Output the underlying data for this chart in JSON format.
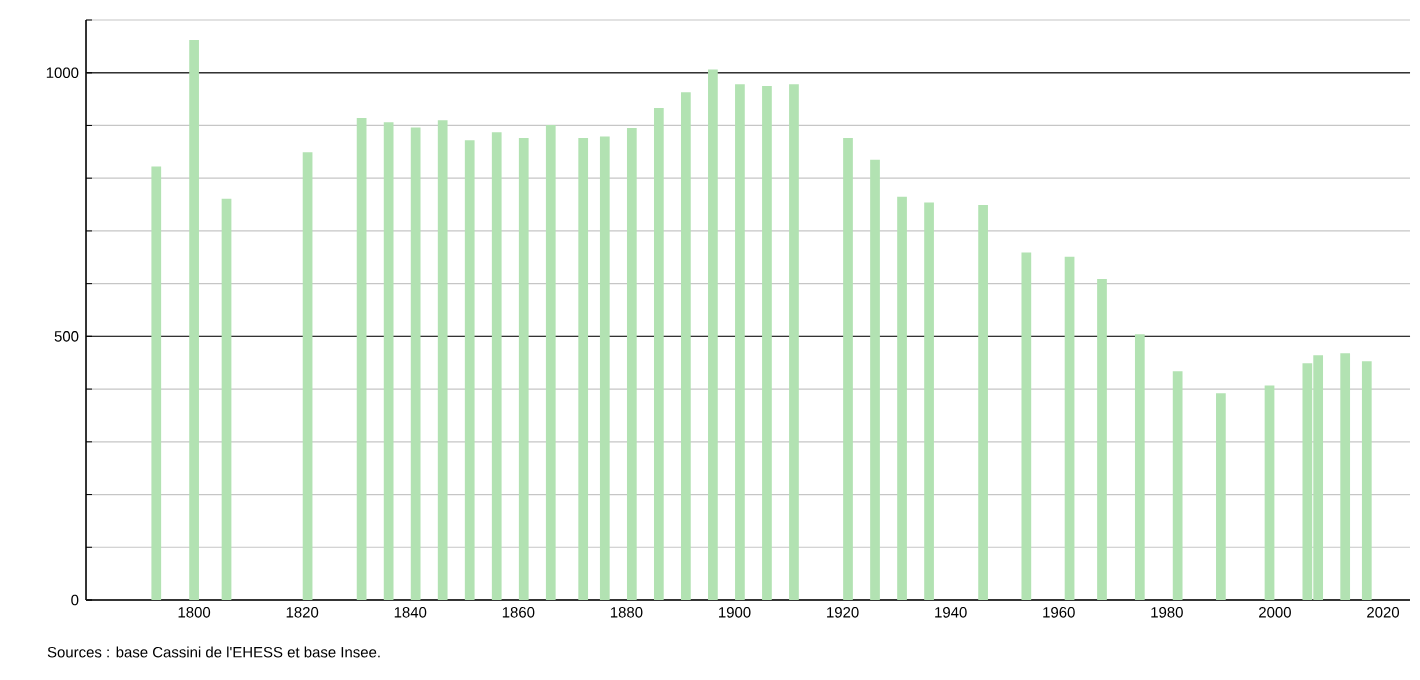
{
  "chart_data": {
    "type": "bar",
    "color": "#b2e2b2",
    "x": [
      1793,
      1800,
      1806,
      1821,
      1831,
      1836,
      1841,
      1846,
      1851,
      1856,
      1861,
      1866,
      1872,
      1876,
      1881,
      1886,
      1891,
      1896,
      1901,
      1906,
      1911,
      1921,
      1926,
      1931,
      1936,
      1946,
      1954,
      1962,
      1968,
      1975,
      1982,
      1990,
      1999,
      2006,
      2008,
      2013,
      2017
    ],
    "values": [
      822,
      1062,
      761,
      849,
      914,
      906,
      896,
      910,
      872,
      887,
      876,
      901,
      876,
      879,
      895,
      933,
      963,
      1006,
      978,
      975,
      978,
      876,
      835,
      765,
      754,
      749,
      659,
      651,
      609,
      504,
      434,
      392,
      407,
      449,
      464,
      468,
      453
    ],
    "xlim": [
      1780,
      2025
    ],
    "xticks": [
      1800,
      1820,
      1840,
      1860,
      1880,
      1900,
      1920,
      1940,
      1960,
      1980,
      2000,
      2020
    ],
    "ylim": [
      0,
      1100
    ],
    "yticks": [
      0,
      {
        "value": 100,
        "label": null
      },
      {
        "value": 200,
        "label": null
      },
      {
        "value": 300,
        "label": null
      },
      {
        "value": 400,
        "label": null
      },
      500,
      {
        "value": 600,
        "label": null
      },
      {
        "value": 700,
        "label": null
      },
      {
        "value": 800,
        "label": null
      },
      {
        "value": 900,
        "label": null
      },
      1000,
      {
        "value": 1100,
        "label": null
      }
    ],
    "grid": "y",
    "annotations": [
      "Sources : base Cassini de l'EHESS et base Insee."
    ]
  }
}
